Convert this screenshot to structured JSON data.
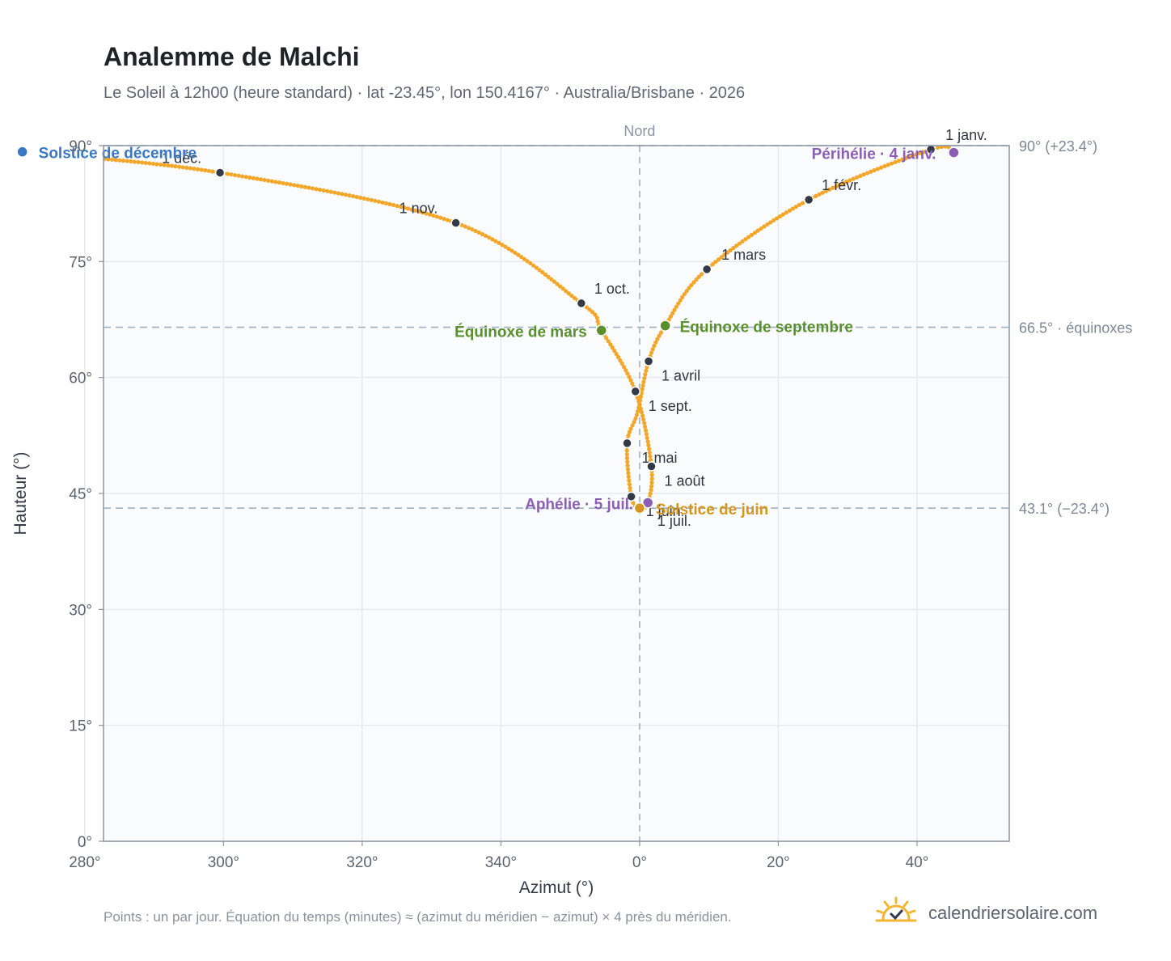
{
  "header": {
    "title": "Analemme de Malchi",
    "subtitle": "Le Soleil à 12h00 (heure standard) · lat -23.45°, lon 150.4167° · Australia/Brisbane · 2026"
  },
  "footer": {
    "note": "Points : un par jour. Équation du temps (minutes) ≈ (azimut du méridien − azimut) × 4 près du méridien.",
    "brand": "calendriersolaire.com"
  },
  "colors": {
    "curve": "#f2a72a",
    "month_dot": "#333a45",
    "equinox": "#5a8f2e",
    "dec_solstice": "#3a78c2",
    "jun_solstice": "#d4961e",
    "aphelion_perihelion": "#8c5fb5",
    "grid": "#e6e9ee",
    "plot_bg": "#f9fbfd",
    "axis": "#8a94a3"
  },
  "chart_data": {
    "type": "scatter",
    "title": "Analemme de Malchi",
    "xlabel": "Azimut (°)",
    "ylabel": "Hauteur (°)",
    "xlim": [
      -77.3,
      53.3
    ],
    "ylim": [
      0,
      90
    ],
    "grid": true,
    "x_ticks": [
      {
        "value": -80,
        "label": "280°"
      },
      {
        "value": -60,
        "label": "300°"
      },
      {
        "value": -40,
        "label": "320°"
      },
      {
        "value": -20,
        "label": "340°"
      },
      {
        "value": 0,
        "label": "0°"
      },
      {
        "value": 20,
        "label": "20°"
      },
      {
        "value": 40,
        "label": "40°"
      }
    ],
    "y_ticks": [
      {
        "value": 0,
        "label": "0°"
      },
      {
        "value": 15,
        "label": "15°"
      },
      {
        "value": 30,
        "label": "30°"
      },
      {
        "value": 45,
        "label": "45°"
      },
      {
        "value": 60,
        "label": "60°"
      },
      {
        "value": 75,
        "label": "75°"
      },
      {
        "value": 90,
        "label": "90°"
      }
    ],
    "meridian": {
      "x": 0,
      "label": "Nord"
    },
    "reference_lines": [
      {
        "y": 90,
        "label": "90° (+23.4°)"
      },
      {
        "y": 66.5,
        "label": "66.5° · équinoxes"
      },
      {
        "y": 43.1,
        "label": "43.1° (−23.4°)"
      }
    ],
    "curve_control_points": [
      {
        "az": 45.3,
        "alt": 89.1
      },
      {
        "az": 42.0,
        "alt": 89.5
      },
      {
        "az": 24.4,
        "alt": 83.0
      },
      {
        "az": 9.7,
        "alt": 74.0
      },
      {
        "az": 3.7,
        "alt": 66.7
      },
      {
        "az": 1.3,
        "alt": 62.1
      },
      {
        "az": -0.3,
        "alt": 55.5
      },
      {
        "az": -1.8,
        "alt": 51.5
      },
      {
        "az": -1.2,
        "alt": 44.6
      },
      {
        "az": 0.0,
        "alt": 43.1
      },
      {
        "az": 1.2,
        "alt": 43.8
      },
      {
        "az": 1.7,
        "alt": 48.5
      },
      {
        "az": -0.6,
        "alt": 58.2
      },
      {
        "az": -5.5,
        "alt": 66.1
      },
      {
        "az": -8.4,
        "alt": 69.6
      },
      {
        "az": -26.5,
        "alt": 80.0
      },
      {
        "az": -60.5,
        "alt": 86.5
      },
      {
        "az": -89.0,
        "alt": 89.2
      }
    ],
    "month_points": [
      {
        "label": "1 janv.",
        "az": 42.0,
        "alt": 89.5
      },
      {
        "label": "1 févr.",
        "az": 24.4,
        "alt": 83.0
      },
      {
        "label": "1 mars",
        "az": 9.7,
        "alt": 74.0
      },
      {
        "label": "1 avril",
        "az": 1.3,
        "alt": 62.1
      },
      {
        "label": "1 mai",
        "az": -1.8,
        "alt": 51.5
      },
      {
        "label": "1 juin",
        "az": -1.2,
        "alt": 44.6
      },
      {
        "label": "1 juil.",
        "az": 0.0,
        "alt": 43.1
      },
      {
        "label": "1 août",
        "az": 1.7,
        "alt": 48.5
      },
      {
        "label": "1 sept.",
        "az": -0.6,
        "alt": 58.2
      },
      {
        "label": "1 oct.",
        "az": -8.4,
        "alt": 69.6
      },
      {
        "label": "1 nov.",
        "az": -26.5,
        "alt": 80.0
      },
      {
        "label": "1 déc.",
        "az": -60.5,
        "alt": 86.5
      }
    ],
    "events": [
      {
        "label": "Solstice de décembre",
        "az": -89.0,
        "alt": 89.2,
        "color_key": "dec_solstice"
      },
      {
        "label": "Périhélie · 4 janv.",
        "az": 45.3,
        "alt": 89.1,
        "color_key": "aphelion_perihelion"
      },
      {
        "label": "Équinoxe de mars",
        "az": 3.7,
        "alt": 66.7,
        "color_key": "equinox"
      },
      {
        "label": "Équinoxe de septembre",
        "az": -5.5,
        "alt": 66.1,
        "color_key": "equinox"
      },
      {
        "label": "Aphélie · 5 juil.",
        "az": 1.2,
        "alt": 43.8,
        "color_key": "aphelion_perihelion"
      },
      {
        "label": "Solstice de juin",
        "az": 0.0,
        "alt": 43.1,
        "color_key": "jun_solstice"
      }
    ]
  }
}
